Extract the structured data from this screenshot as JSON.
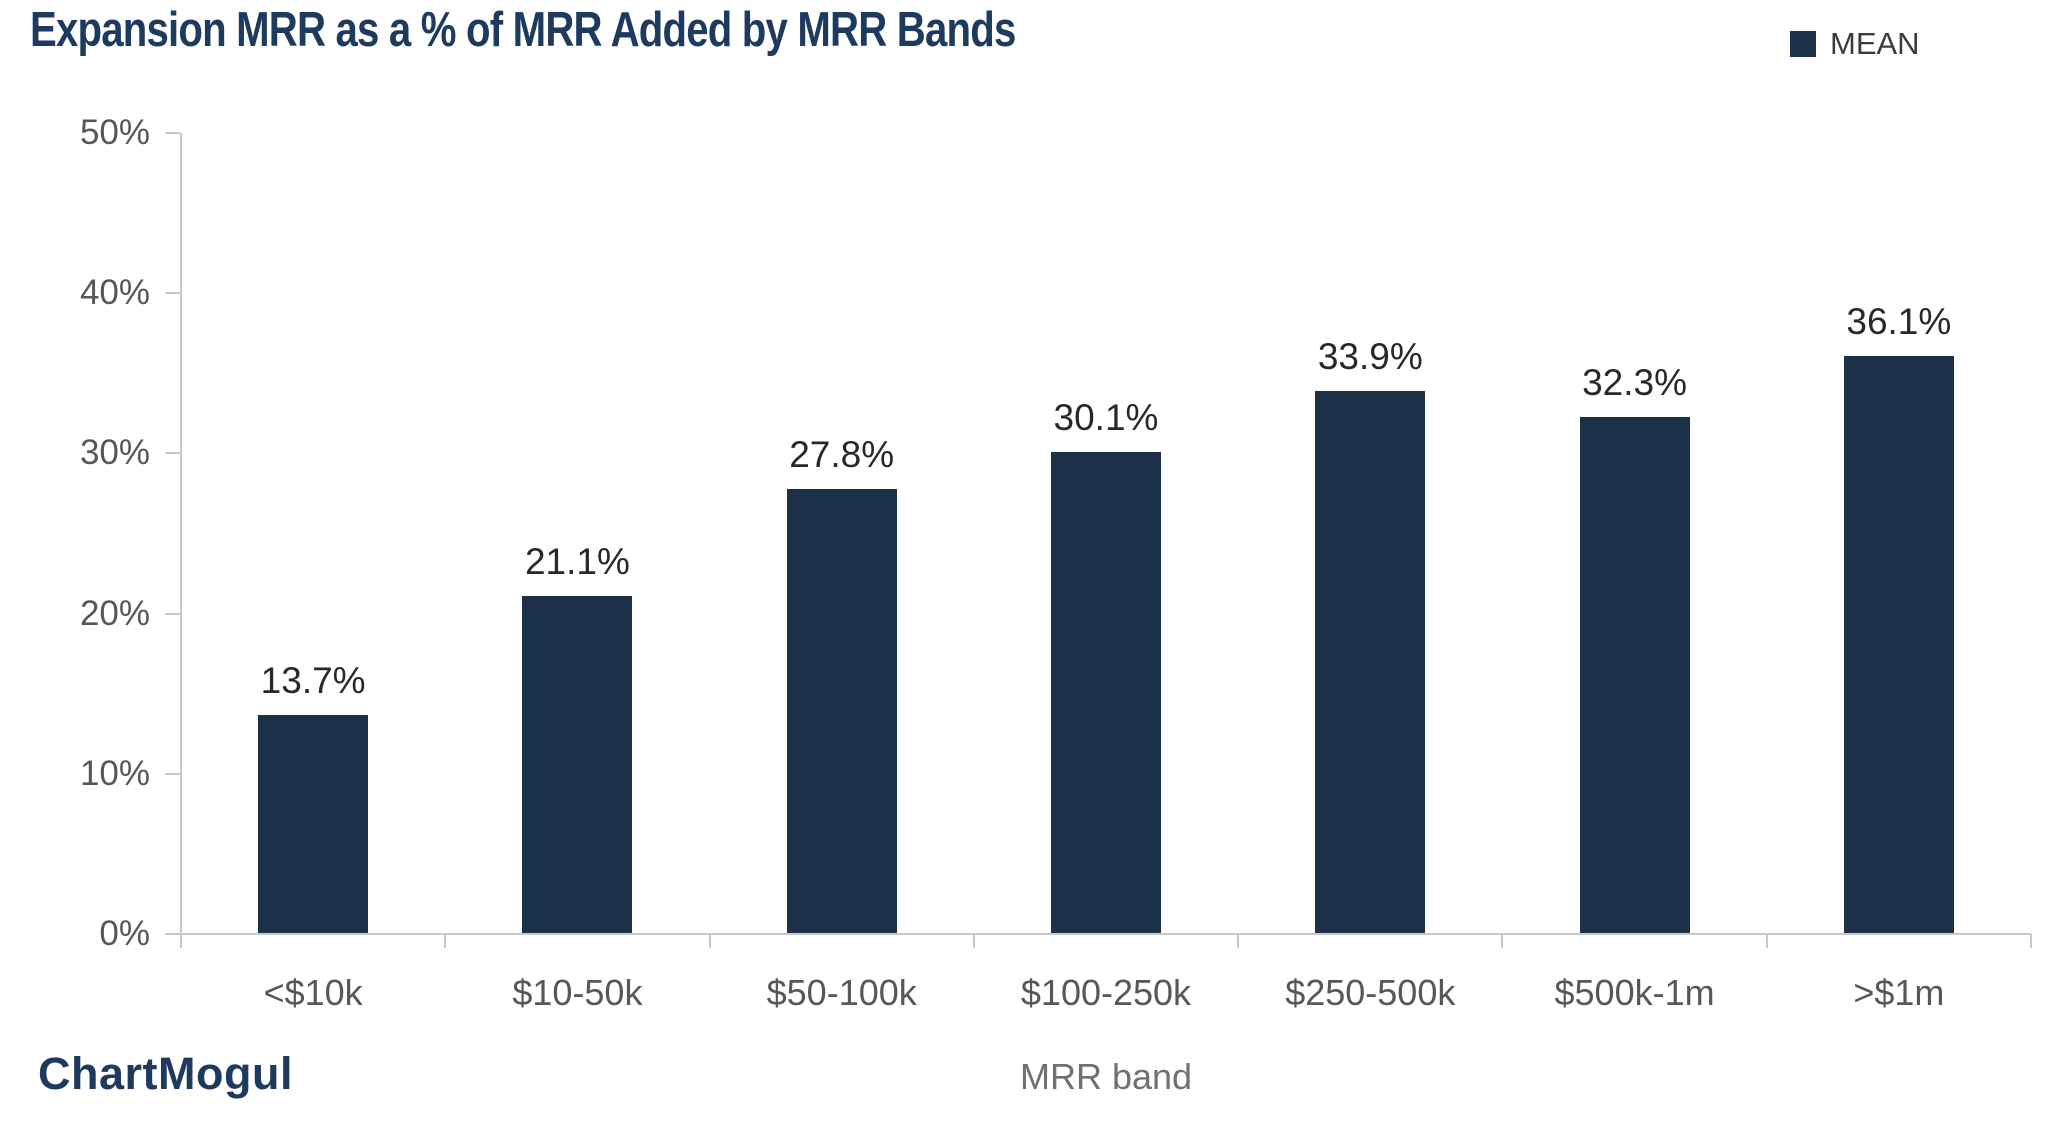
{
  "title": "Expansion MRR as a % of MRR Added by MRR Bands",
  "legend": {
    "label": "MEAN"
  },
  "branding": {
    "logo_text": "ChartMogul"
  },
  "colors": {
    "bar": "#1c3048",
    "title": "#1e3a5f",
    "axis_line": "#c6c9cc",
    "tick_label": "#55575b",
    "data_label": "#27282b",
    "axis_title": "#6e7073",
    "logo": "#1e3a5f"
  },
  "chart_data": {
    "type": "bar",
    "title": "Expansion MRR as a % of MRR Added by MRR Bands",
    "categories": [
      "<$10k",
      "$10-50k",
      "$50-100k",
      "$100-250k",
      "$250-500k",
      "$500k-1m",
      ">$1m"
    ],
    "series": [
      {
        "name": "MEAN",
        "values": [
          13.7,
          21.1,
          27.8,
          30.1,
          33.9,
          32.3,
          36.1
        ],
        "value_labels": [
          "13.7%",
          "21.1%",
          "27.8%",
          "30.1%",
          "33.9%",
          "32.3%",
          "36.1%"
        ]
      }
    ],
    "xlabel": "MRR band",
    "ylabel": "",
    "ylim": [
      0,
      50
    ],
    "yticks": [
      {
        "value": 0,
        "label": "0%"
      },
      {
        "value": 10,
        "label": "10%"
      },
      {
        "value": 20,
        "label": "20%"
      },
      {
        "value": 30,
        "label": "30%"
      },
      {
        "value": 40,
        "label": "40%"
      },
      {
        "value": 50,
        "label": "50%"
      }
    ],
    "grid": false,
    "legend_position": "top-right"
  }
}
